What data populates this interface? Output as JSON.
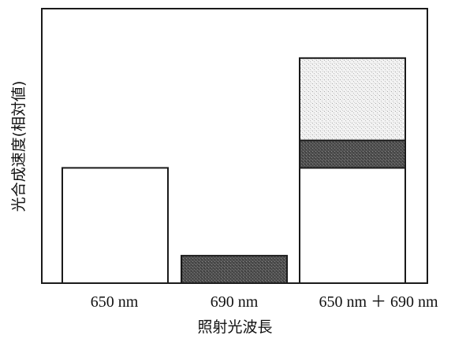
{
  "chart_data": {
    "type": "bar",
    "stacked": true,
    "title": "",
    "xlabel": "照射光波長",
    "ylabel": "光合成速度(相対値)",
    "categories": [
      "650 nm",
      "690 nm",
      "650 nm ＋ 690 nm"
    ],
    "series": [
      {
        "key": "base_650",
        "values": [
          42,
          0,
          42
        ],
        "color": "#ffffff"
      },
      {
        "key": "dark_690",
        "values": [
          0,
          10,
          10
        ],
        "color": "#5a5a5a"
      },
      {
        "key": "light_extra",
        "values": [
          0,
          0,
          30
        ],
        "color": "#dcdcdc"
      }
    ],
    "ylim": [
      0,
      100
    ],
    "grid": false,
    "legend": "none"
  }
}
